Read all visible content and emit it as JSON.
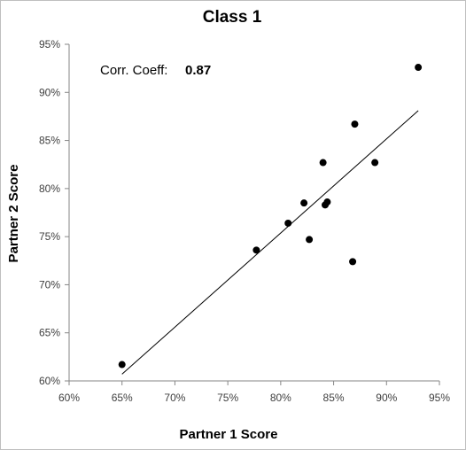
{
  "chart_data": {
    "type": "scatter",
    "title": "Class 1",
    "xlabel": "Partner 1 Score",
    "ylabel": "Partner 2 Score",
    "xlim": [
      0.6,
      0.95
    ],
    "ylim": [
      0.6,
      0.95
    ],
    "x_ticks": [
      "60%",
      "65%",
      "70%",
      "75%",
      "80%",
      "85%",
      "90%",
      "95%"
    ],
    "y_ticks": [
      "60%",
      "65%",
      "70%",
      "75%",
      "80%",
      "85%",
      "90%",
      "95%"
    ],
    "grid": false,
    "legend": "none",
    "annotation": {
      "label": "Corr. Coeff:",
      "value": "0.87"
    },
    "points": [
      {
        "x": 0.65,
        "y": 0.617
      },
      {
        "x": 0.777,
        "y": 0.736
      },
      {
        "x": 0.807,
        "y": 0.764
      },
      {
        "x": 0.822,
        "y": 0.785
      },
      {
        "x": 0.827,
        "y": 0.747
      },
      {
        "x": 0.84,
        "y": 0.827
      },
      {
        "x": 0.842,
        "y": 0.783
      },
      {
        "x": 0.844,
        "y": 0.786
      },
      {
        "x": 0.868,
        "y": 0.724
      },
      {
        "x": 0.87,
        "y": 0.867
      },
      {
        "x": 0.889,
        "y": 0.827
      },
      {
        "x": 0.93,
        "y": 0.926
      }
    ],
    "trendline": {
      "x": [
        0.65,
        0.93
      ],
      "y": [
        0.607,
        0.881
      ]
    },
    "colors": {
      "marker": "#000000",
      "trendline": "#000000",
      "axis": "#868686"
    }
  }
}
